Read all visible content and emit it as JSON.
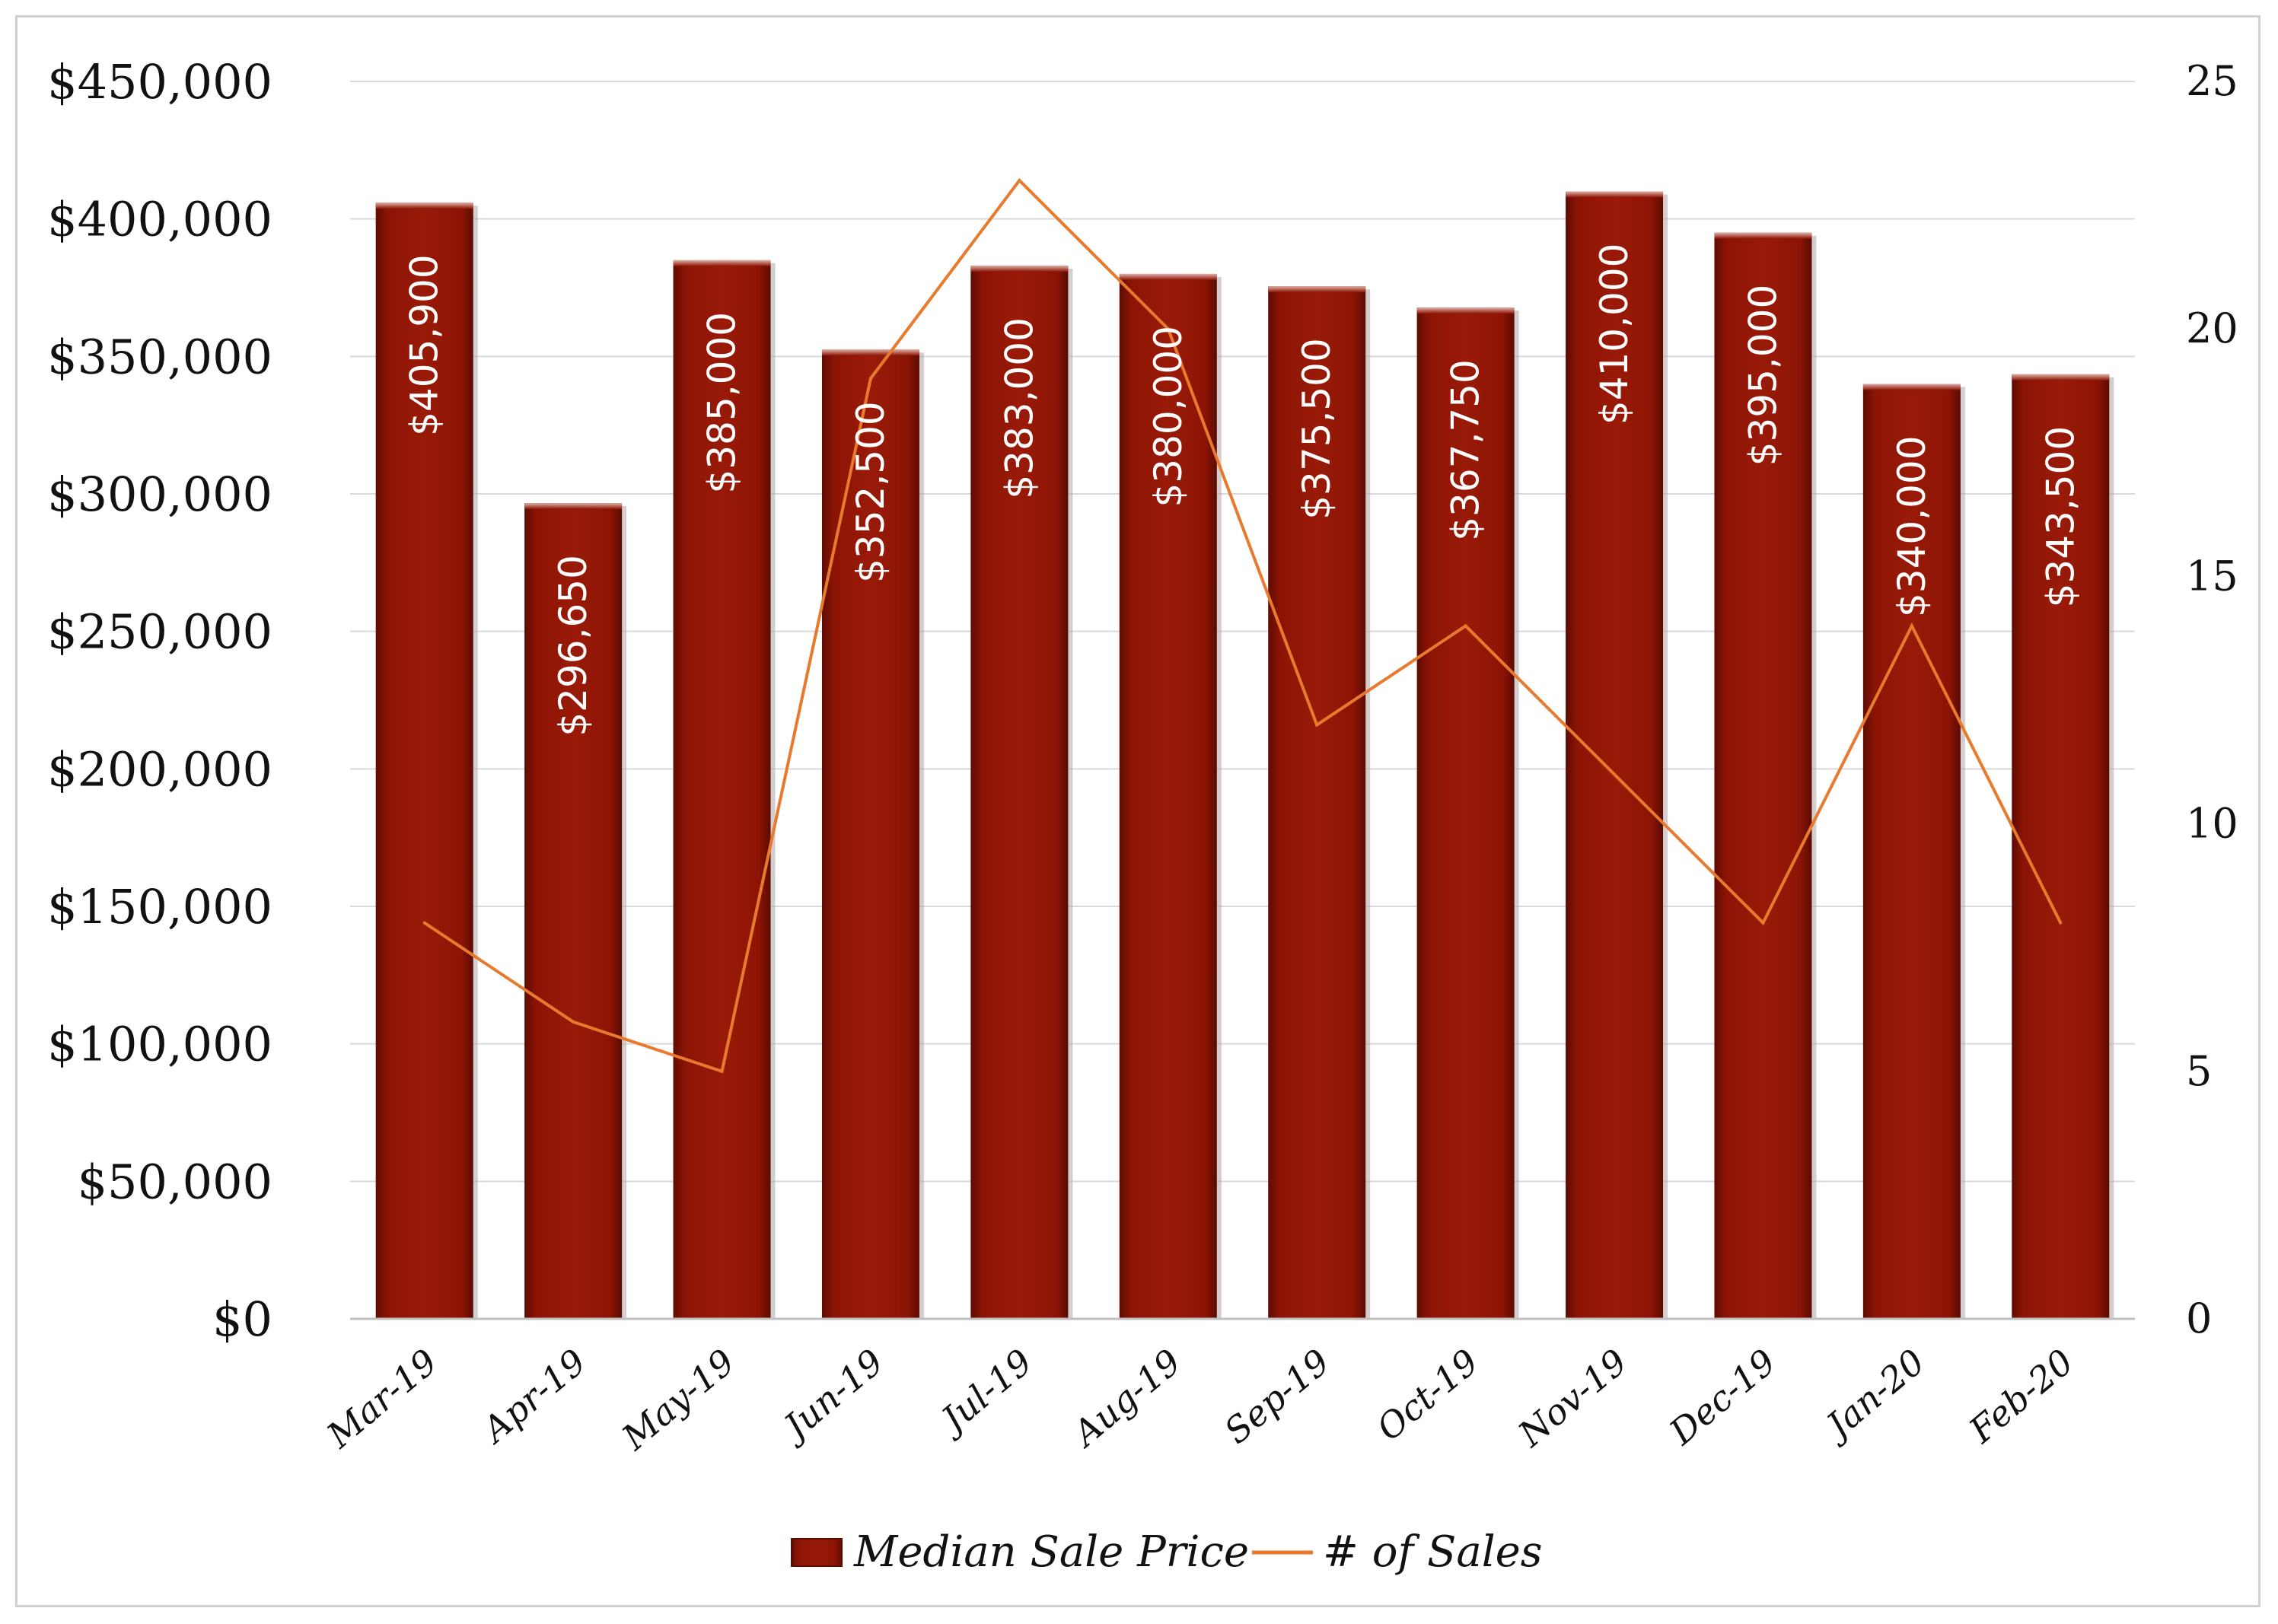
{
  "chart_data": {
    "type": "bar",
    "categories": [
      "Mar-19",
      "Apr-19",
      "May-19",
      "Jun-19",
      "Jul-19",
      "Aug-19",
      "Sep-19",
      "Oct-19",
      "Nov-19",
      "Dec-19",
      "Jan-20",
      "Feb-20"
    ],
    "series": [
      {
        "name": "Median Sale Price",
        "type": "bar",
        "axis": "left",
        "values": [
          405900,
          296650,
          385000,
          352500,
          383000,
          380000,
          375500,
          367750,
          410000,
          395000,
          340000,
          343500
        ],
        "labels": [
          "$405,900",
          "$296,650",
          "$385,000",
          "$352,500",
          "$383,000",
          "$380,000",
          "$375,500",
          "$367,750",
          "$410,000",
          "$395,000",
          "$340,000",
          "$343,500"
        ],
        "color": "#8f1505"
      },
      {
        "name": "# of Sales",
        "type": "line",
        "axis": "right",
        "values": [
          8,
          6,
          5,
          19,
          23,
          20,
          12,
          14,
          11,
          8,
          14,
          8
        ],
        "color": "#e87a2e"
      }
    ],
    "y_left": {
      "ylim": [
        0,
        450000
      ],
      "ticks": [
        0,
        50000,
        100000,
        150000,
        200000,
        250000,
        300000,
        350000,
        400000,
        450000
      ],
      "tick_labels": [
        "$0",
        "$50,000",
        "$100,000",
        "$150,000",
        "$200,000",
        "$250,000",
        "$300,000",
        "$350,000",
        "$400,000",
        "$450,000"
      ]
    },
    "y_right": {
      "ylim": [
        0,
        25
      ],
      "ticks": [
        0,
        5,
        10,
        15,
        20,
        25
      ],
      "tick_labels": [
        "0",
        "5",
        "10",
        "15",
        "20",
        "25"
      ]
    },
    "grid": true,
    "legend": "bottom"
  }
}
